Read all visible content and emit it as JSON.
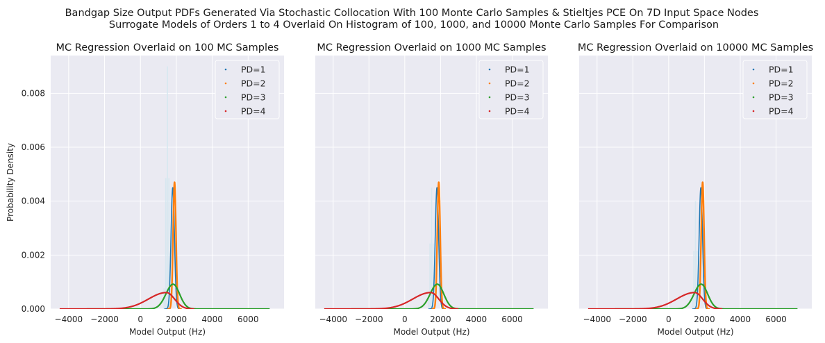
{
  "figure": {
    "title_line1": "Bandgap Size Output PDFs Generated Via Stochastic Collocation With 100 Monte Carlo Samples & Stieltjes PCE On 7D Input Space Nodes",
    "title_line2": "Surrogate Models of Orders 1 to 4 Overlaid On Histogram of 100, 1000, and 10000 Monte Carlo Samples For Comparison",
    "background": "#eaeaf2",
    "grid_color": "#ffffff"
  },
  "chart_data": [
    {
      "type": "line",
      "title": "MC Regression Overlaid on 100 MC Samples",
      "xlabel": "Model Output (Hz)",
      "ylabel": "Probability Density",
      "xlim": [
        -5000,
        8000
      ],
      "ylim": [
        0,
        0.0094
      ],
      "xticks": [
        -4000,
        -2000,
        0,
        2000,
        4000,
        6000
      ],
      "yticks": [
        0.0,
        0.002,
        0.004,
        0.006,
        0.008
      ],
      "grid": true,
      "legend_position": "top-right",
      "histogram": {
        "color": "#d5e6f0",
        "peak_x": 1500,
        "peak_y": 0.009
      },
      "series": [
        {
          "name": "PD=1",
          "color": "#1f77b4",
          "peak_x": 1800,
          "peak_y": 0.0045,
          "sigma_left": 95,
          "sigma_right": 95
        },
        {
          "name": "PD=2",
          "color": "#ff7f0e",
          "peak_x": 1900,
          "peak_y": 0.0047,
          "sigma_left": 80,
          "sigma_right": 80
        },
        {
          "name": "PD=3",
          "color": "#2ca02c",
          "peak_x": 1820,
          "peak_y": 0.00092,
          "sigma_left": 400,
          "sigma_right": 360,
          "xmin": -3000,
          "xmax": 7200
        },
        {
          "name": "PD=4",
          "color": "#d62728",
          "peak_x": 1450,
          "peak_y": 0.00061,
          "sigma_left": 1000,
          "sigma_right": 450,
          "xmin": -4500,
          "xmax": 3000
        }
      ]
    },
    {
      "type": "line",
      "title": "MC Regression Overlaid on 1000 MC Samples",
      "xlabel": "Model Output (Hz)",
      "ylabel": "",
      "xlim": [
        -5000,
        8000
      ],
      "ylim": [
        0,
        0.0094
      ],
      "xticks": [
        -4000,
        -2000,
        0,
        2000,
        4000,
        6000
      ],
      "yticks": [],
      "grid": true,
      "legend_position": "top-right",
      "histogram": {
        "color": "#d5e6f0",
        "peak_x": 1500,
        "peak_y": 0.0045
      },
      "series": [
        {
          "name": "PD=1",
          "color": "#1f77b4",
          "peak_x": 1800,
          "peak_y": 0.0045,
          "sigma_left": 95,
          "sigma_right": 95
        },
        {
          "name": "PD=2",
          "color": "#ff7f0e",
          "peak_x": 1900,
          "peak_y": 0.0047,
          "sigma_left": 80,
          "sigma_right": 80
        },
        {
          "name": "PD=3",
          "color": "#2ca02c",
          "peak_x": 1820,
          "peak_y": 0.00092,
          "sigma_left": 400,
          "sigma_right": 360,
          "xmin": -3000,
          "xmax": 7200
        },
        {
          "name": "PD=4",
          "color": "#d62728",
          "peak_x": 1450,
          "peak_y": 0.00061,
          "sigma_left": 1000,
          "sigma_right": 450,
          "xmin": -4500,
          "xmax": 3000
        }
      ]
    },
    {
      "type": "line",
      "title": "MC Regression Overlaid on 10000 MC Samples",
      "xlabel": "Model Output (Hz)",
      "ylabel": "",
      "xlim": [
        -5000,
        8000
      ],
      "ylim": [
        0,
        0.0094
      ],
      "xticks": [
        -4000,
        -2000,
        0,
        2000,
        4000,
        6000
      ],
      "yticks": [],
      "grid": true,
      "legend_position": "top-right",
      "histogram": {
        "color": "#d5e6f0",
        "peak_x": 1500,
        "peak_y": 0.004
      },
      "series": [
        {
          "name": "PD=1",
          "color": "#1f77b4",
          "peak_x": 1800,
          "peak_y": 0.0045,
          "sigma_left": 95,
          "sigma_right": 95
        },
        {
          "name": "PD=2",
          "color": "#ff7f0e",
          "peak_x": 1900,
          "peak_y": 0.0047,
          "sigma_left": 80,
          "sigma_right": 80
        },
        {
          "name": "PD=3",
          "color": "#2ca02c",
          "peak_x": 1820,
          "peak_y": 0.00092,
          "sigma_left": 400,
          "sigma_right": 360,
          "xmin": -3000,
          "xmax": 7200
        },
        {
          "name": "PD=4",
          "color": "#d62728",
          "peak_x": 1450,
          "peak_y": 0.00061,
          "sigma_left": 1000,
          "sigma_right": 450,
          "xmin": -4500,
          "xmax": 3000
        }
      ]
    }
  ]
}
